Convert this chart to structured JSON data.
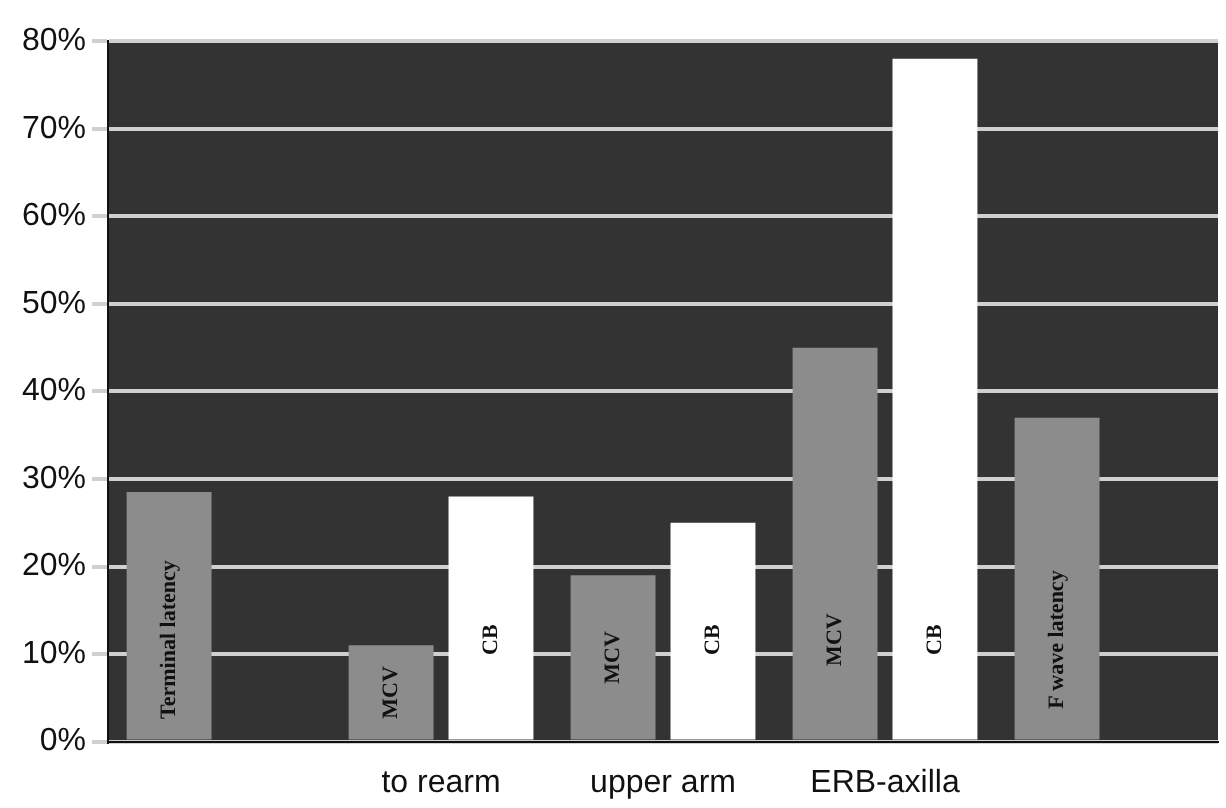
{
  "chart_data": {
    "type": "bar",
    "categories": [
      null,
      "to rearm",
      "upper arm",
      "ERB-axilla",
      null
    ],
    "series": [
      {
        "color": "#8c8c8c",
        "values": [
          28.5,
          11,
          19,
          45,
          37
        ],
        "value_labels": [
          "Terminal latency",
          "MCV",
          "MCV",
          "MCV",
          "F wave latency"
        ]
      },
      {
        "color": "#ffffff",
        "values": [
          null,
          28,
          25,
          78,
          null
        ],
        "value_labels": [
          null,
          "CB",
          "CB",
          "CB",
          null
        ]
      }
    ],
    "ylim": [
      0,
      80
    ],
    "yticks": [
      {
        "value": 0,
        "label": "0%"
      },
      {
        "value": 10,
        "label": "10%"
      },
      {
        "value": 20,
        "label": "20%"
      },
      {
        "value": 30,
        "label": "30%"
      },
      {
        "value": 40,
        "label": "40%"
      },
      {
        "value": 50,
        "label": "50%"
      },
      {
        "value": 60,
        "label": "60%"
      },
      {
        "value": 70,
        "label": "70%"
      },
      {
        "value": 80,
        "label": "80%"
      }
    ],
    "grid": "y",
    "legend": false
  }
}
